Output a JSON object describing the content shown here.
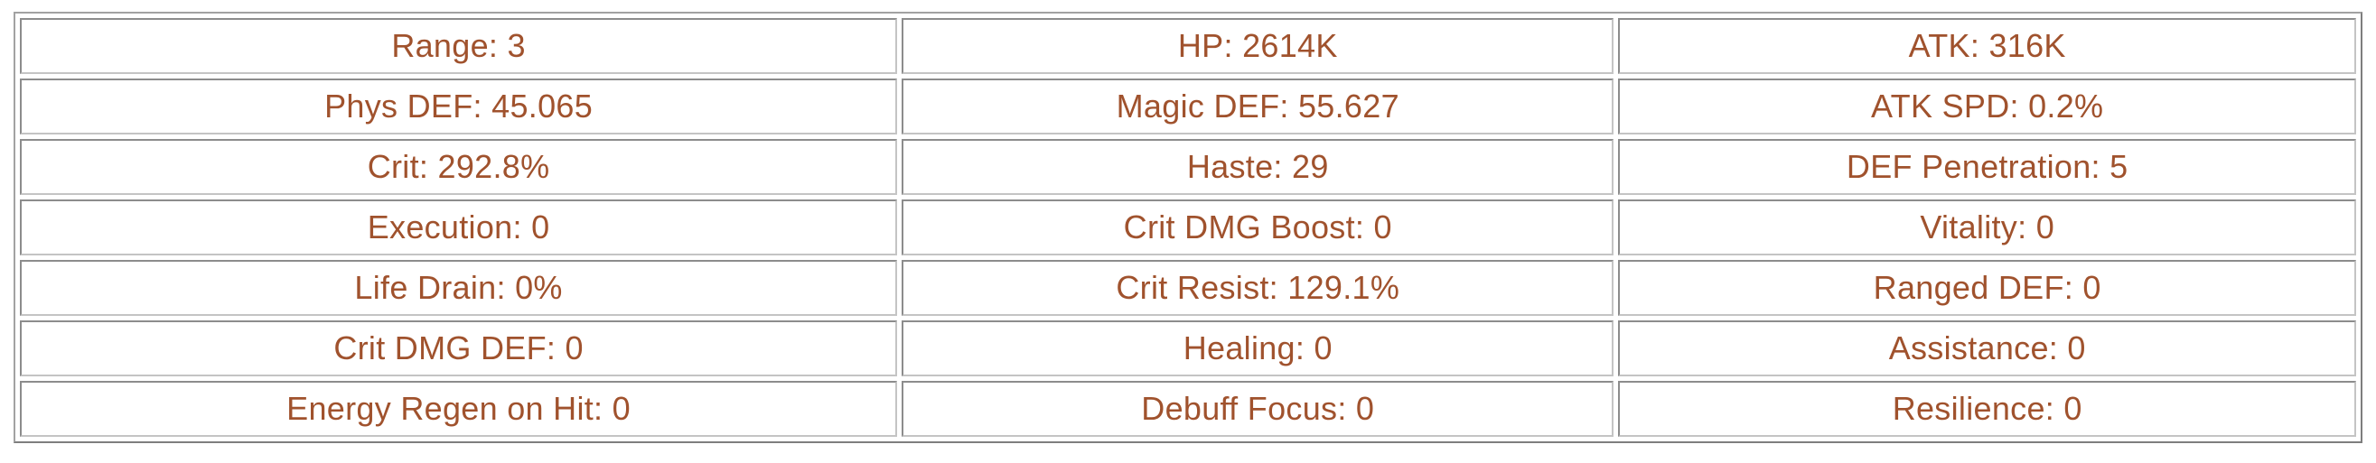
{
  "theme": {
    "page_background": "#ffffff",
    "cell_background": "#ffffff",
    "text_color": "#a0522d",
    "cell_border_dark": "#8c8c8c",
    "cell_border_light": "#c4c4c4",
    "outer_border": "#8f8f8f"
  },
  "stats_table": {
    "separator": ": ",
    "columns": 3,
    "rows": [
      [
        {
          "label": "Range",
          "value": "3"
        },
        {
          "label": "HP",
          "value": "2614K"
        },
        {
          "label": "ATK",
          "value": "316K"
        }
      ],
      [
        {
          "label": "Phys DEF",
          "value": "45.065"
        },
        {
          "label": "Magic DEF",
          "value": "55.627"
        },
        {
          "label": "ATK SPD",
          "value": "0.2%"
        }
      ],
      [
        {
          "label": "Crit",
          "value": "292.8%"
        },
        {
          "label": "Haste",
          "value": "29"
        },
        {
          "label": "DEF Penetration",
          "value": "5"
        }
      ],
      [
        {
          "label": "Execution",
          "value": "0"
        },
        {
          "label": "Crit DMG Boost",
          "value": "0"
        },
        {
          "label": "Vitality",
          "value": "0"
        }
      ],
      [
        {
          "label": "Life Drain",
          "value": "0%"
        },
        {
          "label": "Crit Resist",
          "value": "129.1%"
        },
        {
          "label": "Ranged DEF",
          "value": "0"
        }
      ],
      [
        {
          "label": "Crit DMG DEF",
          "value": "0"
        },
        {
          "label": "Healing",
          "value": "0"
        },
        {
          "label": "Assistance",
          "value": "0"
        }
      ],
      [
        {
          "label": "Energy Regen on Hit",
          "value": "0"
        },
        {
          "label": "Debuff Focus",
          "value": "0"
        },
        {
          "label": "Resilience",
          "value": "0"
        }
      ]
    ]
  }
}
